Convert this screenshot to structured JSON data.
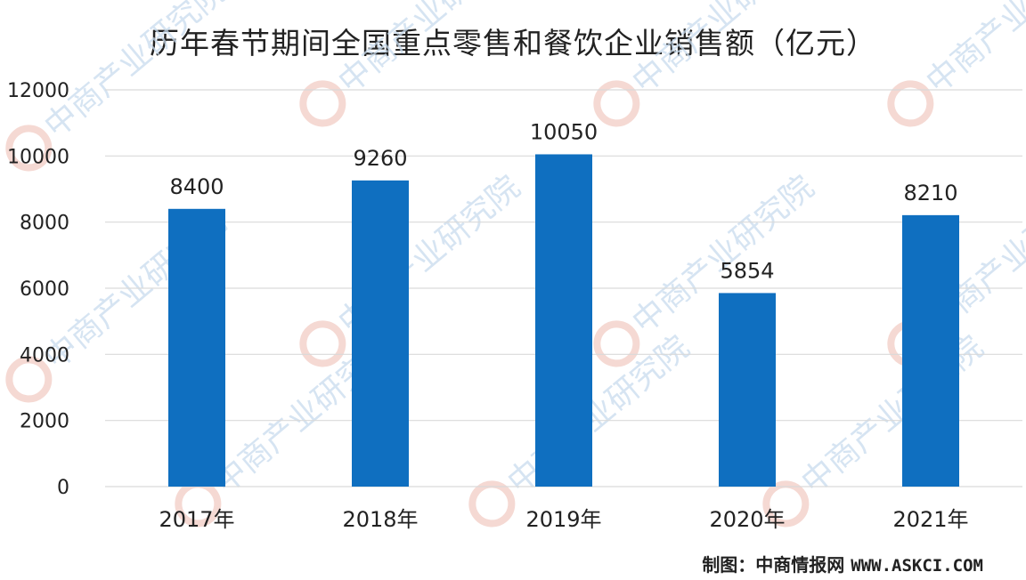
{
  "chart_data": {
    "type": "bar",
    "title": "历年春节期间全国重点零售和餐饮企业销售额（亿元）",
    "categories": [
      "2017年",
      "2018年",
      "2019年",
      "2020年",
      "2021年"
    ],
    "series": [
      {
        "values": [
          8400,
          9260,
          10050,
          5854,
          8210
        ]
      }
    ],
    "data_labels": [
      "8400",
      "9260",
      "10050",
      "5854",
      "8210"
    ],
    "ylim": [
      0,
      12000
    ],
    "yticks": [
      "0",
      "2000",
      "4000",
      "6000",
      "8000",
      "10000",
      "12000"
    ],
    "grid": true,
    "bar_color": "#0f6fc0"
  },
  "watermark": "中商产业研究院",
  "credit": {
    "prefix": "制图：中商情报网",
    "site": "WWW.ASKCI.COM"
  }
}
